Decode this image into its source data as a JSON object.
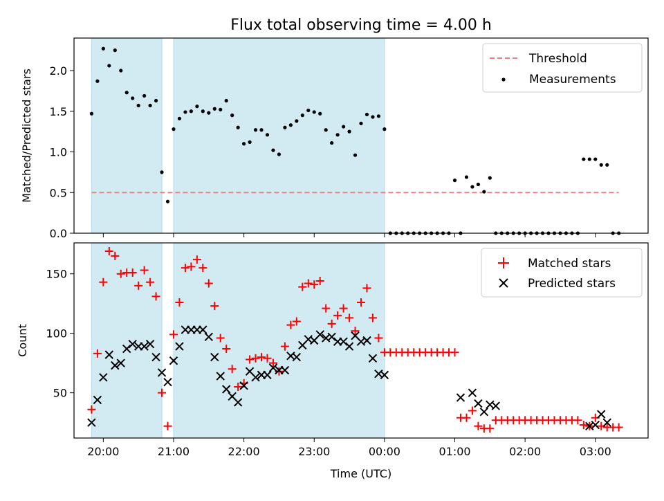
{
  "title": "Flux total observing time = 4.00 h",
  "xlabel": "Time (UTC)",
  "x_ticks": [
    "20:00",
    "21:00",
    "22:00",
    "23:00",
    "00:00",
    "01:00",
    "02:00",
    "03:00"
  ],
  "colors": {
    "threshold": "#f08080",
    "shade": "#add8e6",
    "matched": "#ff0000",
    "predicted": "#000000",
    "measurement": "#000000"
  },
  "chart_data": [
    {
      "type": "scatter",
      "ylabel": "Matched/Predicted stars",
      "xlim": [
        "19:35",
        "03:45"
      ],
      "ylim": [
        0,
        2.4
      ],
      "yticks": [
        "0.0",
        "0.5",
        "1.0",
        "1.5",
        "2.0"
      ],
      "legend": "top-right",
      "shaded_intervals": [
        [
          "19:50",
          "20:50"
        ],
        [
          "21:00",
          "00:00"
        ]
      ],
      "threshold": {
        "name": "Threshold",
        "value": 0.5,
        "x_range": [
          "19:50",
          "03:20"
        ]
      },
      "series": [
        {
          "name": "Measurements",
          "x": [
            "19:50",
            "19:55",
            "20:00",
            "20:05",
            "20:10",
            "20:15",
            "20:20",
            "20:25",
            "20:30",
            "20:35",
            "20:40",
            "20:45",
            "20:50",
            "20:55",
            "21:00",
            "21:05",
            "21:10",
            "21:15",
            "21:20",
            "21:25",
            "21:30",
            "21:35",
            "21:40",
            "21:45",
            "21:50",
            "21:55",
            "22:00",
            "22:05",
            "22:10",
            "22:15",
            "22:20",
            "22:25",
            "22:30",
            "22:35",
            "22:40",
            "22:45",
            "22:50",
            "22:55",
            "23:00",
            "23:05",
            "23:10",
            "23:15",
            "23:20",
            "23:25",
            "23:30",
            "23:35",
            "23:40",
            "23:45",
            "23:50",
            "23:55",
            "00:00",
            "00:05",
            "00:10",
            "00:15",
            "00:20",
            "00:25",
            "00:30",
            "00:35",
            "00:40",
            "00:45",
            "00:50",
            "00:55",
            "01:00",
            "01:05",
            "01:10",
            "01:15",
            "01:20",
            "01:25",
            "01:30",
            "01:35",
            "01:40",
            "01:45",
            "01:50",
            "01:55",
            "02:00",
            "02:05",
            "02:10",
            "02:15",
            "02:20",
            "02:25",
            "02:30",
            "02:35",
            "02:40",
            "02:45",
            "02:50",
            "02:55",
            "03:00",
            "03:05",
            "03:10",
            "03:15",
            "03:20"
          ],
          "y": [
            1.47,
            1.87,
            2.27,
            2.06,
            2.25,
            2.0,
            1.73,
            1.66,
            1.57,
            1.69,
            1.57,
            1.63,
            0.75,
            0.39,
            1.28,
            1.41,
            1.49,
            1.5,
            1.56,
            1.5,
            1.48,
            1.53,
            1.52,
            1.63,
            1.45,
            1.3,
            1.1,
            1.12,
            1.27,
            1.27,
            1.21,
            1.02,
            0.97,
            1.3,
            1.33,
            1.38,
            1.45,
            1.51,
            1.49,
            1.47,
            1.27,
            1.11,
            1.21,
            1.31,
            1.25,
            0.96,
            1.35,
            1.46,
            1.43,
            1.44,
            1.28,
            0.0,
            0.0,
            0.0,
            0.0,
            0.0,
            0.0,
            0.0,
            0.0,
            0.0,
            0.0,
            0.0,
            0.65,
            0.0,
            0.69,
            0.57,
            0.6,
            0.51,
            0.68,
            0.0,
            0.0,
            0.0,
            0.0,
            0.0,
            0.0,
            0.0,
            0.0,
            0.0,
            0.0,
            0.0,
            0.0,
            0.0,
            0.0,
            0.0,
            0.91,
            0.91,
            0.91,
            0.84,
            0.84,
            0.0,
            0.0
          ]
        }
      ]
    },
    {
      "type": "scatter",
      "ylabel": "Count",
      "xlim": [
        "19:35",
        "03:45"
      ],
      "ylim": [
        12,
        176
      ],
      "yticks": [
        "50",
        "100",
        "150"
      ],
      "legend": "top-right",
      "shaded_intervals": [
        [
          "19:50",
          "20:50"
        ],
        [
          "21:00",
          "00:00"
        ]
      ],
      "series": [
        {
          "name": "Matched stars",
          "marker": "+",
          "x": [
            "19:50",
            "19:55",
            "20:00",
            "20:05",
            "20:10",
            "20:15",
            "20:20",
            "20:25",
            "20:30",
            "20:35",
            "20:40",
            "20:45",
            "20:50",
            "20:55",
            "21:00",
            "21:05",
            "21:10",
            "21:15",
            "21:20",
            "21:25",
            "21:30",
            "21:35",
            "21:40",
            "21:45",
            "21:50",
            "21:55",
            "22:00",
            "22:05",
            "22:10",
            "22:15",
            "22:20",
            "22:25",
            "22:30",
            "22:35",
            "22:40",
            "22:45",
            "22:50",
            "22:55",
            "23:00",
            "23:05",
            "23:10",
            "23:15",
            "23:20",
            "23:25",
            "23:30",
            "23:35",
            "23:40",
            "23:45",
            "23:50",
            "23:55",
            "00:00",
            "00:05",
            "00:10",
            "00:15",
            "00:20",
            "00:25",
            "00:30",
            "00:35",
            "00:40",
            "00:45",
            "00:50",
            "00:55",
            "01:00",
            "01:05",
            "01:10",
            "01:15",
            "01:20",
            "01:25",
            "01:30",
            "01:35",
            "01:40",
            "01:45",
            "01:50",
            "01:55",
            "02:00",
            "02:05",
            "02:10",
            "02:15",
            "02:20",
            "02:25",
            "02:30",
            "02:35",
            "02:40",
            "02:45",
            "02:50",
            "02:55",
            "03:00",
            "03:05",
            "03:10",
            "03:15",
            "03:20"
          ],
          "y": [
            36,
            83,
            143,
            169,
            165,
            150,
            151,
            151,
            140,
            153,
            143,
            131,
            50,
            22,
            99,
            126,
            155,
            156,
            162,
            155,
            142,
            123,
            96,
            87,
            70,
            55,
            58,
            78,
            79,
            80,
            79,
            75,
            68,
            89,
            107,
            110,
            139,
            142,
            141,
            144,
            121,
            108,
            115,
            121,
            113,
            102,
            126,
            138,
            113,
            96,
            84,
            84,
            84,
            84,
            84,
            84,
            84,
            84,
            84,
            84,
            84,
            84,
            84,
            29,
            29,
            35,
            22,
            20,
            20,
            27,
            27,
            27,
            27,
            27,
            27,
            27,
            27,
            27,
            27,
            27,
            27,
            27,
            27,
            27,
            23,
            22,
            29,
            22,
            21,
            21,
            21
          ]
        },
        {
          "name": "Predicted stars",
          "marker": "x",
          "x": [
            "19:50",
            "19:55",
            "20:00",
            "20:05",
            "20:10",
            "20:15",
            "20:20",
            "20:25",
            "20:30",
            "20:35",
            "20:40",
            "20:45",
            "20:50",
            "20:55",
            "21:00",
            "21:05",
            "21:10",
            "21:15",
            "21:20",
            "21:25",
            "21:30",
            "21:35",
            "21:40",
            "21:45",
            "21:50",
            "21:55",
            "22:00",
            "22:05",
            "22:10",
            "22:15",
            "22:20",
            "22:25",
            "22:30",
            "22:35",
            "22:40",
            "22:45",
            "22:50",
            "22:55",
            "23:00",
            "23:05",
            "23:10",
            "23:15",
            "23:20",
            "23:25",
            "23:30",
            "23:35",
            "23:40",
            "23:45",
            "23:50",
            "23:55",
            "00:00",
            "01:05",
            "01:15",
            "01:20",
            "01:25",
            "01:30",
            "01:35",
            "02:55",
            "03:00",
            "03:05",
            "03:10"
          ],
          "y": [
            25,
            44,
            63,
            82,
            73,
            75,
            87,
            91,
            89,
            89,
            91,
            80,
            67,
            59,
            77,
            89,
            103,
            103,
            103,
            103,
            97,
            80,
            64,
            53,
            47,
            42,
            56,
            68,
            63,
            65,
            65,
            71,
            69,
            69,
            81,
            80,
            90,
            95,
            94,
            99,
            96,
            97,
            93,
            93,
            89,
            98,
            93,
            94,
            79,
            66,
            65,
            46,
            50,
            41,
            34,
            40,
            39,
            22,
            23,
            32,
            25
          ]
        }
      ]
    }
  ]
}
